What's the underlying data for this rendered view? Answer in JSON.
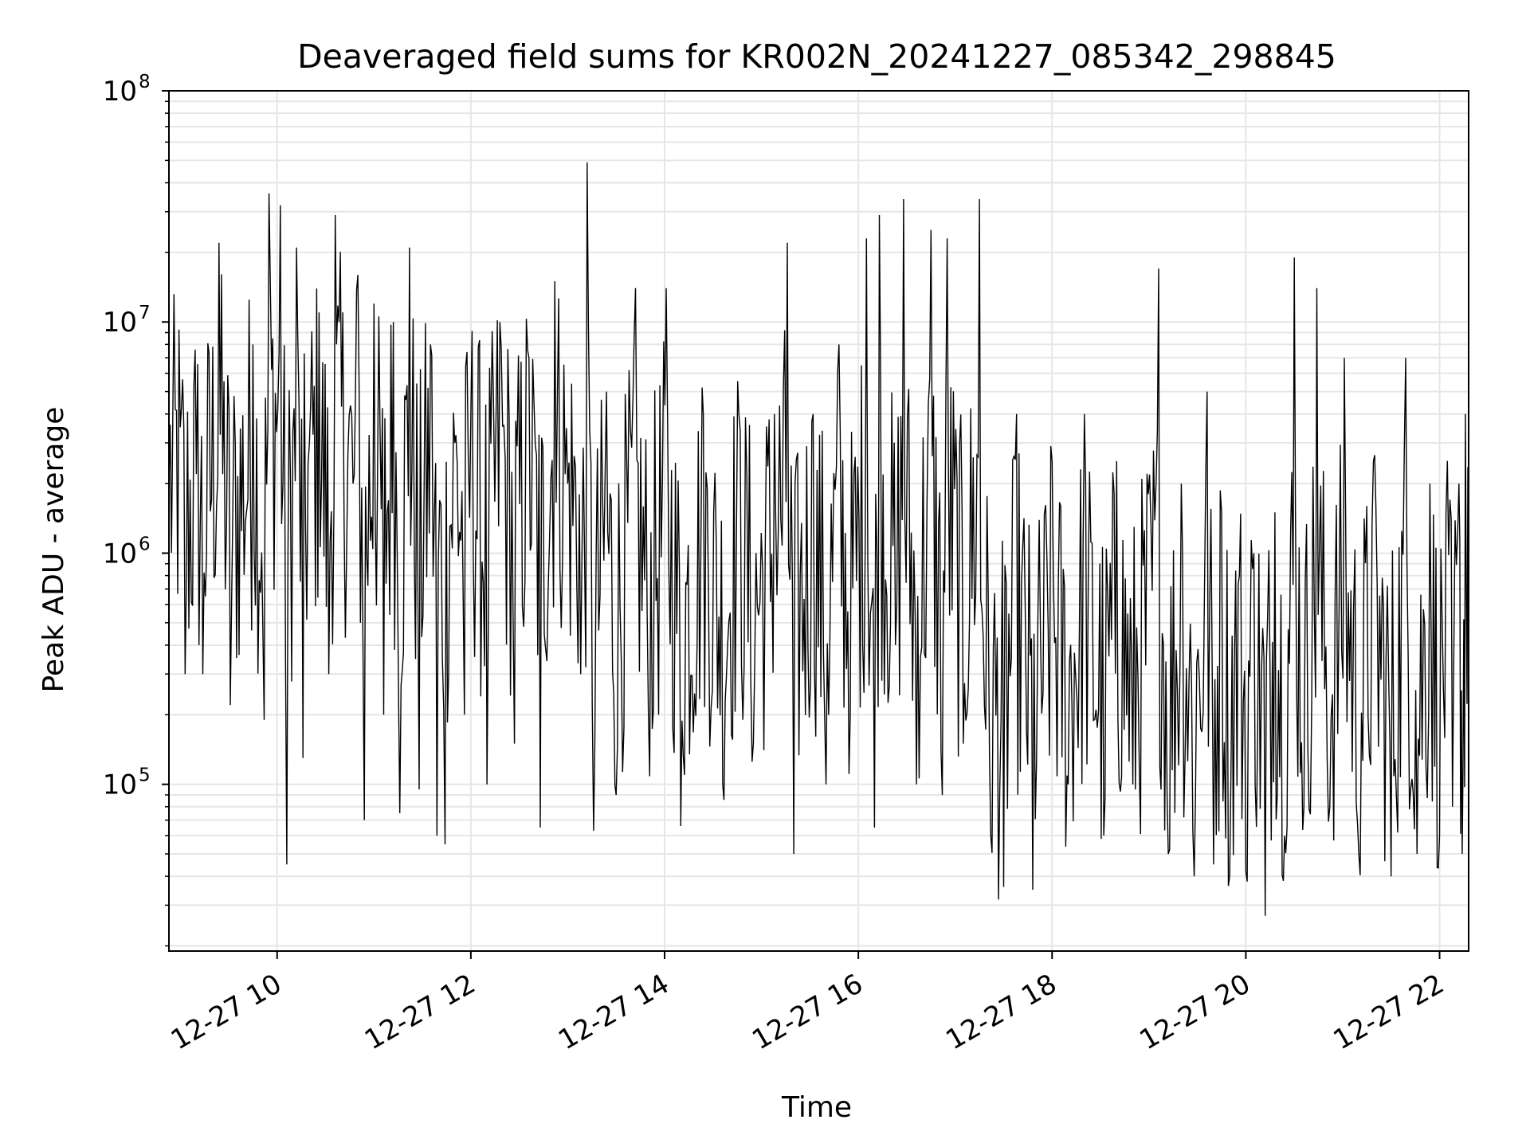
{
  "chart_data": {
    "type": "line",
    "title": "Deaveraged field sums for KR002N_20241227_085342_298845",
    "xlabel": "Time",
    "ylabel": "Peak ADU - average",
    "yscale": "log",
    "ylim": [
      19000,
      100000000
    ],
    "xlim": [
      "2024-12-27 08:53",
      "2024-12-27 22:18"
    ],
    "grid": true,
    "line_color": "#000000",
    "x_ticks": [
      {
        "value": "2024-12-27 10:00",
        "label": "12-27 10"
      },
      {
        "value": "2024-12-27 12:00",
        "label": "12-27 12"
      },
      {
        "value": "2024-12-27 14:00",
        "label": "12-27 14"
      },
      {
        "value": "2024-12-27 16:00",
        "label": "12-27 16"
      },
      {
        "value": "2024-12-27 18:00",
        "label": "12-27 18"
      },
      {
        "value": "2024-12-27 20:00",
        "label": "12-27 20"
      },
      {
        "value": "2024-12-27 22:00",
        "label": "12-27 22"
      }
    ],
    "y_ticks": [
      {
        "value": 100000,
        "base": "10",
        "exp": "5"
      },
      {
        "value": 1000000,
        "base": "10",
        "exp": "6"
      },
      {
        "value": 10000000,
        "base": "10",
        "exp": "7"
      },
      {
        "value": 100000000,
        "base": "10",
        "exp": "8"
      }
    ],
    "series": [
      {
        "points": [
          [
            "2024-12-27 08:53",
            2000000
          ],
          [
            "2024-12-27 09:00",
            3500000
          ],
          [
            "2024-12-27 09:03",
            300000
          ],
          [
            "2024-12-27 09:10",
            2200000
          ],
          [
            "2024-12-27 09:14",
            300000
          ],
          [
            "2024-12-27 09:24",
            22000000
          ],
          [
            "2024-12-27 09:31",
            220000
          ],
          [
            "2024-12-27 09:45",
            8000000
          ],
          [
            "2024-12-27 09:52",
            190000
          ],
          [
            "2024-12-27 09:55",
            36000000
          ],
          [
            "2024-12-27 10:02",
            32000000
          ],
          [
            "2024-12-27 10:06",
            45000
          ],
          [
            "2024-12-27 10:12",
            21000000
          ],
          [
            "2024-12-27 10:16",
            130000
          ],
          [
            "2024-12-27 10:20",
            3000000
          ],
          [
            "2024-12-27 10:26",
            11000000
          ],
          [
            "2024-12-27 10:32",
            300000
          ],
          [
            "2024-12-27 10:36",
            29000000
          ],
          [
            "2024-12-27 10:47",
            2000000
          ],
          [
            "2024-12-27 10:50",
            16000000
          ],
          [
            "2024-12-27 10:54",
            70000
          ],
          [
            "2024-12-27 11:00",
            12000000
          ],
          [
            "2024-12-27 11:06",
            200000
          ],
          [
            "2024-12-27 11:12",
            10000000
          ],
          [
            "2024-12-27 11:16",
            75000
          ],
          [
            "2024-12-27 11:22",
            21000000
          ],
          [
            "2024-12-27 11:28",
            95000
          ],
          [
            "2024-12-27 11:35",
            8000000
          ],
          [
            "2024-12-27 11:39",
            60000
          ],
          [
            "2024-12-27 11:44",
            55000
          ],
          [
            "2024-12-27 11:50",
            3000000
          ],
          [
            "2024-12-27 11:56",
            200000
          ],
          [
            "2024-12-27 12:00",
            4000000
          ],
          [
            "2024-12-27 12:10",
            100000
          ],
          [
            "2024-12-27 12:18",
            10000000
          ],
          [
            "2024-12-27 12:27",
            150000
          ],
          [
            "2024-12-27 12:36",
            7000000
          ],
          [
            "2024-12-27 12:43",
            65000
          ],
          [
            "2024-12-27 12:52",
            15000000
          ],
          [
            "2024-12-27 13:00",
            2000000
          ],
          [
            "2024-12-27 13:08",
            300000
          ],
          [
            "2024-12-27 13:12",
            49000000
          ],
          [
            "2024-12-27 13:16",
            63000
          ],
          [
            "2024-12-27 13:24",
            5000000
          ],
          [
            "2024-12-27 13:30",
            90000
          ],
          [
            "2024-12-27 13:42",
            14000000
          ],
          [
            "2024-12-27 13:50",
            200000
          ],
          [
            "2024-12-27 14:01",
            14000000
          ],
          [
            "2024-12-27 14:10",
            66000
          ],
          [
            "2024-12-27 14:24",
            4000000
          ],
          [
            "2024-12-27 14:36",
            100000
          ],
          [
            "2024-12-27 14:46",
            4000000
          ],
          [
            "2024-12-27 14:55",
            150000
          ],
          [
            "2024-12-27 15:08",
            4000000
          ],
          [
            "2024-12-27 15:16",
            22000000
          ],
          [
            "2024-12-27 15:20",
            50000
          ],
          [
            "2024-12-27 15:32",
            4000000
          ],
          [
            "2024-12-27 15:40",
            100000
          ],
          [
            "2024-12-27 15:48",
            8000000
          ],
          [
            "2024-12-27 15:55",
            200000
          ],
          [
            "2024-12-27 16:05",
            23000000
          ],
          [
            "2024-12-27 16:10",
            65000
          ],
          [
            "2024-12-27 16:13",
            29000000
          ],
          [
            "2024-12-27 16:23",
            400000
          ],
          [
            "2024-12-27 16:28",
            34000000
          ],
          [
            "2024-12-27 16:36",
            100000
          ],
          [
            "2024-12-27 16:45",
            25000000
          ],
          [
            "2024-12-27 16:52",
            90000
          ],
          [
            "2024-12-27 16:55",
            23000000
          ],
          [
            "2024-12-27 17:05",
            150000
          ],
          [
            "2024-12-27 17:15",
            34000000
          ],
          [
            "2024-12-27 17:22",
            60000
          ],
          [
            "2024-12-27 17:30",
            36000
          ],
          [
            "2024-12-27 17:38",
            4000000
          ],
          [
            "2024-12-27 17:48",
            35000
          ],
          [
            "2024-12-27 18:00",
            2500000
          ],
          [
            "2024-12-27 18:10",
            100000
          ],
          [
            "2024-12-27 18:20",
            4000000
          ],
          [
            "2024-12-27 18:32",
            60000
          ],
          [
            "2024-12-27 18:40",
            2500000
          ],
          [
            "2024-12-27 18:50",
            100000
          ],
          [
            "2024-12-27 19:06",
            17000000
          ],
          [
            "2024-12-27 19:12",
            50000
          ],
          [
            "2024-12-27 19:20",
            2000000
          ],
          [
            "2024-12-27 19:28",
            40000
          ],
          [
            "2024-12-27 19:36",
            5000000
          ],
          [
            "2024-12-27 19:40",
            45000
          ],
          [
            "2024-12-27 19:45",
            1500000
          ],
          [
            "2024-12-27 19:50",
            40000
          ],
          [
            "2024-12-27 19:56",
            800000
          ],
          [
            "2024-12-27 20:00",
            42000
          ],
          [
            "2024-12-27 20:05",
            1000000
          ],
          [
            "2024-12-27 20:12",
            27000
          ],
          [
            "2024-12-27 20:18",
            1500000
          ],
          [
            "2024-12-27 20:24",
            60000
          ],
          [
            "2024-12-27 20:30",
            19000000
          ],
          [
            "2024-12-27 20:36",
            80000
          ],
          [
            "2024-12-27 20:44",
            14000000
          ],
          [
            "2024-12-27 20:52",
            80000
          ],
          [
            "2024-12-27 21:01",
            7000000
          ],
          [
            "2024-12-27 21:10",
            50000
          ],
          [
            "2024-12-27 21:19",
            2500000
          ],
          [
            "2024-12-27 21:30",
            40000
          ],
          [
            "2024-12-27 21:39",
            7000000
          ],
          [
            "2024-12-27 21:46",
            50000
          ],
          [
            "2024-12-27 21:54",
            2000000
          ],
          [
            "2024-12-27 22:00",
            60000
          ],
          [
            "2024-12-27 22:04",
            1500000
          ],
          [
            "2024-12-27 22:08",
            80000
          ],
          [
            "2024-12-27 22:12",
            2000000
          ],
          [
            "2024-12-27 22:14",
            50000
          ],
          [
            "2024-12-27 22:16",
            4000000
          ],
          [
            "2024-12-27 22:18",
            1000000
          ]
        ]
      }
    ]
  }
}
